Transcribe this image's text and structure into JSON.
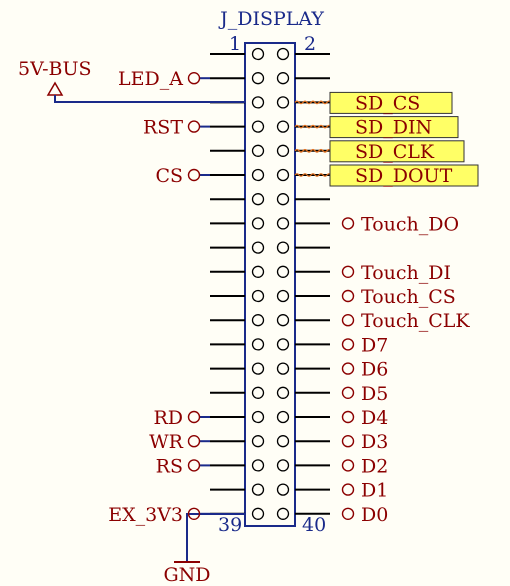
{
  "component": {
    "designator": "J_DISPLAY",
    "first_pin_left": "1",
    "first_pin_right": "2",
    "last_pin_left": "39",
    "last_pin_right": "40"
  },
  "power": {
    "bus_label": "5V-BUS",
    "ground_label": "GND"
  },
  "left_ports": [
    {
      "row": 1,
      "label": "LED_A"
    },
    {
      "row": 3,
      "label": "RST"
    },
    {
      "row": 5,
      "label": "CS"
    },
    {
      "row": 15,
      "label": "RD"
    },
    {
      "row": 16,
      "label": "WR"
    },
    {
      "row": 17,
      "label": "RS"
    },
    {
      "row": 19,
      "label": "EX_3V3"
    }
  ],
  "right_ports": [
    {
      "row": 7,
      "label": "Touch_DO"
    },
    {
      "row": 9,
      "label": "Touch_DI"
    },
    {
      "row": 10,
      "label": "Touch_CS"
    },
    {
      "row": 11,
      "label": "Touch_CLK"
    },
    {
      "row": 12,
      "label": "D7"
    },
    {
      "row": 13,
      "label": "D6"
    },
    {
      "row": 14,
      "label": "D5"
    },
    {
      "row": 15,
      "label": "D4"
    },
    {
      "row": 16,
      "label": "D3"
    },
    {
      "row": 17,
      "label": "D2"
    },
    {
      "row": 18,
      "label": "D1"
    },
    {
      "row": 19,
      "label": "D0"
    }
  ],
  "sd_labels": [
    {
      "row": 2,
      "label": "SD_CS"
    },
    {
      "row": 3,
      "label": "SD_DIN"
    },
    {
      "row": 4,
      "label": "SD_CLK"
    },
    {
      "row": 5,
      "label": "SD_DOUT"
    }
  ],
  "colors": {
    "body_border": "#1a2a8a",
    "wire": "#1a2a8a",
    "text": "#8b0000",
    "sd_fill": "#ffff66",
    "background": "#fffef6"
  }
}
